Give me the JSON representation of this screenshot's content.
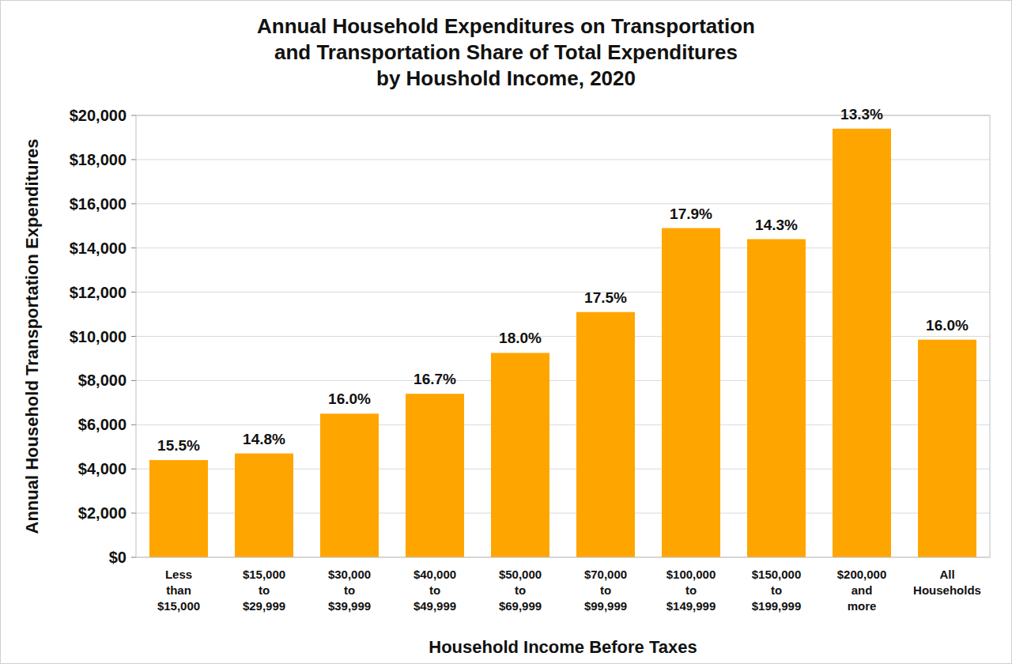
{
  "chart_data": {
    "type": "bar",
    "title": "Annual Household Expenditures on Transportation\nand Transportation Share of Total Expenditures\nby Houshold Income, 2020",
    "x_label": "Household Income Before Taxes",
    "y_label": "Annual Household Transportation Expenditures",
    "categories": [
      "Less\nthan\n$15,000",
      "$15,000\nto\n$29,999",
      "$30,000\nto\n$39,999",
      "$40,000\nto\n$49,999",
      "$50,000\nto\n$69,999",
      "$70,000\nto\n$99,999",
      "$100,000\nto\n$149,999",
      "$150,000\nto\n$199,999",
      "$200,000\nand\nmore",
      "All\nHouseholds"
    ],
    "values": [
      4400,
      4700,
      6500,
      7400,
      9250,
      11100,
      14900,
      14400,
      19400,
      9850
    ],
    "share_labels": [
      "15.5%",
      "14.8%",
      "16.0%",
      "16.7%",
      "18.0%",
      "17.5%",
      "17.9%",
      "14.3%",
      "13.3%",
      "16.0%"
    ],
    "color": "#ffa500",
    "ylim": [
      0,
      20000
    ],
    "yticks": [
      {
        "value": 0,
        "label": "$0"
      },
      {
        "value": 2000,
        "label": "$2,000"
      },
      {
        "value": 4000,
        "label": "$4,000"
      },
      {
        "value": 6000,
        "label": "$6,000"
      },
      {
        "value": 8000,
        "label": "$8,000"
      },
      {
        "value": 10000,
        "label": "$10,000"
      },
      {
        "value": 12000,
        "label": "$12,000"
      },
      {
        "value": 14000,
        "label": "$14,000"
      },
      {
        "value": 16000,
        "label": "$16,000"
      },
      {
        "value": 18000,
        "label": "$18,000"
      },
      {
        "value": 20000,
        "label": "$20,000"
      }
    ],
    "grid": true
  }
}
